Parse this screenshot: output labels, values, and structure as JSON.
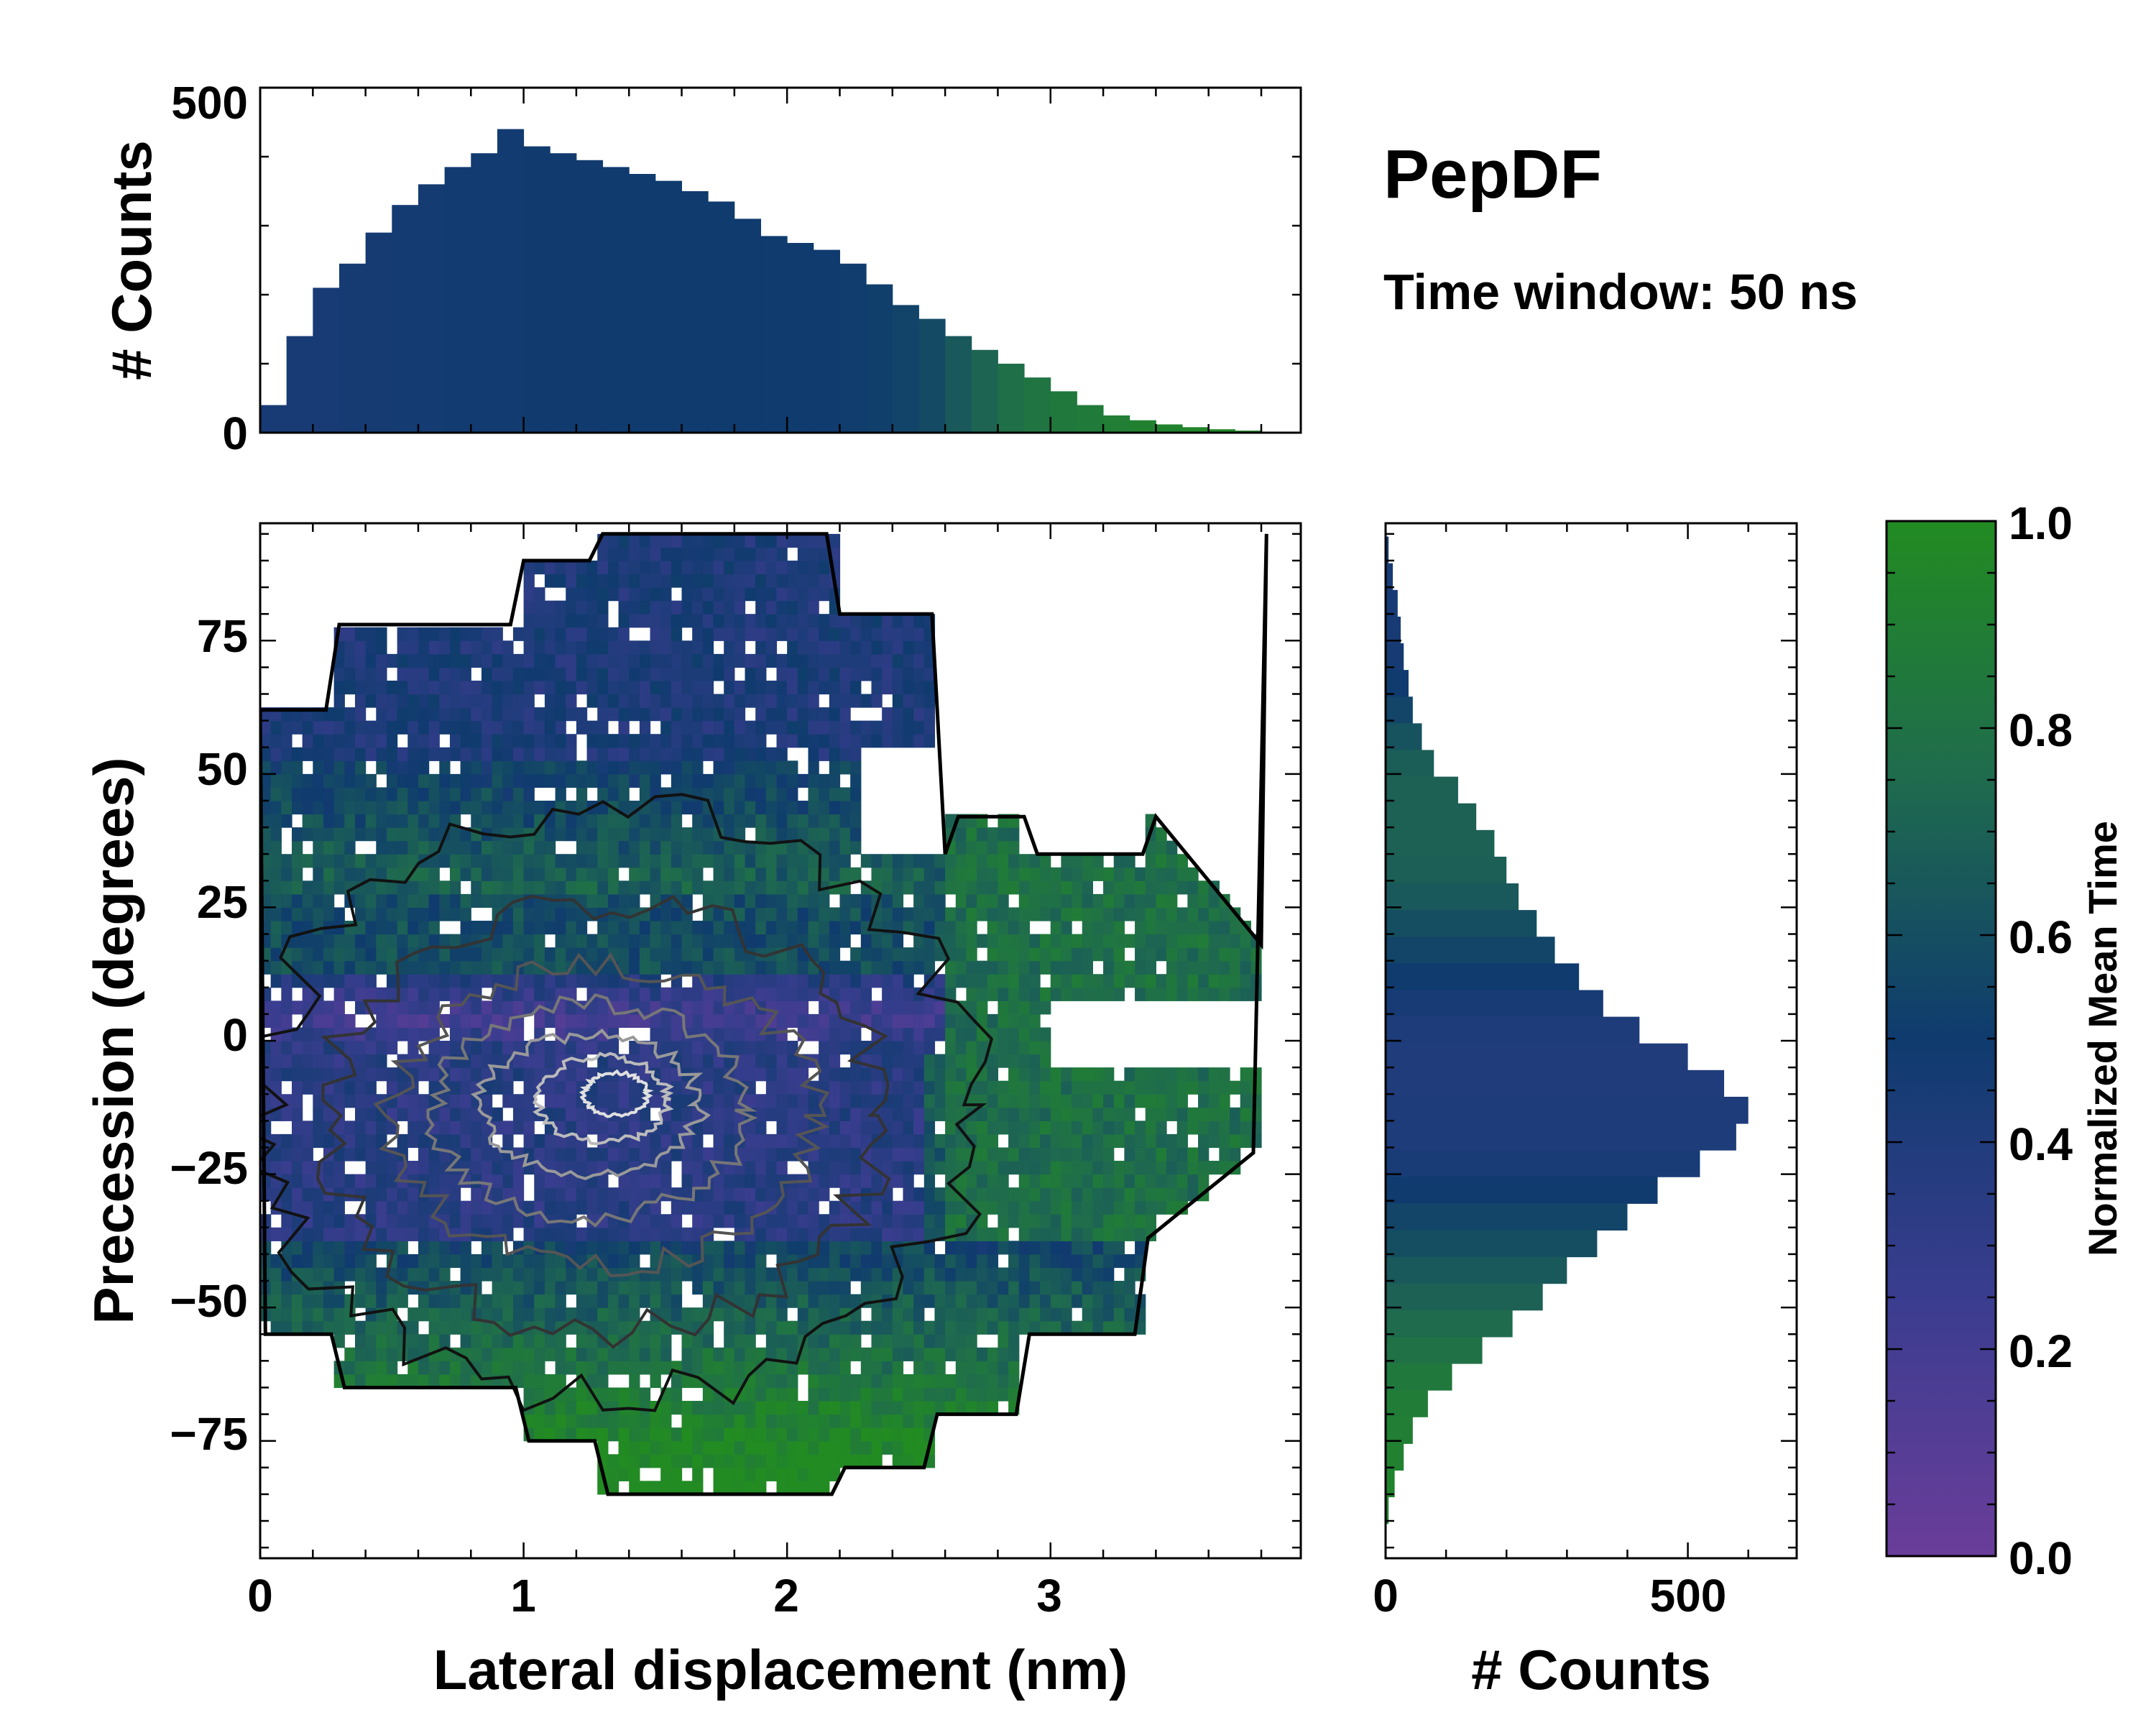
{
  "title": "PepDF",
  "subtitle": "Time window: 50 ns",
  "colors": {
    "low": "#6a3d9a",
    "mid": "#0f3b6e",
    "high": "#228b22"
  },
  "chart_data": [
    {
      "type": "bar",
      "name": "top-histogram",
      "ylabel": "# Counts",
      "xlim": [
        0,
        3.95
      ],
      "ylim": [
        0,
        500
      ],
      "yticks": [
        "0",
        "500"
      ],
      "bin_centers": [
        0.05,
        0.15,
        0.25,
        0.35,
        0.45,
        0.55,
        0.65,
        0.75,
        0.85,
        0.95,
        1.05,
        1.15,
        1.25,
        1.35,
        1.45,
        1.55,
        1.65,
        1.75,
        1.85,
        1.95,
        2.05,
        2.15,
        2.25,
        2.35,
        2.45,
        2.55,
        2.65,
        2.75,
        2.85,
        2.95,
        3.05,
        3.15,
        3.25,
        3.35,
        3.45,
        3.55,
        3.65,
        3.75,
        3.85
      ],
      "values": [
        40,
        140,
        210,
        245,
        290,
        330,
        360,
        385,
        405,
        440,
        415,
        405,
        395,
        385,
        375,
        365,
        350,
        335,
        310,
        285,
        275,
        265,
        245,
        215,
        185,
        165,
        140,
        120,
        100,
        80,
        60,
        40,
        25,
        18,
        12,
        8,
        5,
        3,
        0
      ],
      "normalized_mean_time": [
        0.45,
        0.45,
        0.45,
        0.46,
        0.46,
        0.47,
        0.47,
        0.48,
        0.48,
        0.48,
        0.49,
        0.49,
        0.49,
        0.5,
        0.5,
        0.5,
        0.5,
        0.5,
        0.5,
        0.5,
        0.5,
        0.5,
        0.51,
        0.52,
        0.54,
        0.58,
        0.65,
        0.72,
        0.78,
        0.82,
        0.85,
        0.87,
        0.9,
        0.92,
        0.94,
        0.95,
        0.96,
        0.97,
        0.98
      ]
    },
    {
      "type": "heatmap",
      "name": "main-heatmap",
      "xlabel": "Lateral displacement (nm)",
      "ylabel": "Precession (degrees)",
      "xlim": [
        0,
        3.95
      ],
      "ylim": [
        -97,
        97
      ],
      "xticks": [
        "0",
        "1",
        "2",
        "3"
      ],
      "yticks": [
        "−75",
        "−50",
        "−25",
        "0",
        "25",
        "50",
        "75"
      ],
      "colorbar_label": "Normalized Mean Time",
      "color_field": "mean time varies with precession: low (purple) near -5 to 10 degrees, blue-navy around -25 and above 50, green above 25 and below -50; contours of density centered near (1.3 nm, -12 deg)"
    },
    {
      "type": "bar",
      "name": "right-histogram",
      "orientation": "horizontal",
      "xlabel": "# Counts",
      "xlim": [
        0,
        680
      ],
      "xticks": [
        "0",
        "500"
      ],
      "ylim": [
        -97,
        97
      ],
      "bin_centers": [
        92,
        87,
        82,
        77,
        72,
        67,
        62,
        57,
        52,
        47,
        42,
        37,
        32,
        27,
        22,
        17,
        12,
        7,
        2,
        -3,
        -8,
        -13,
        -18,
        -23,
        -28,
        -33,
        -38,
        -43,
        -48,
        -53,
        -58,
        -63,
        -68,
        -73,
        -78,
        -83,
        -88
      ],
      "values": [
        5,
        12,
        20,
        25,
        30,
        38,
        45,
        60,
        80,
        120,
        150,
        180,
        200,
        220,
        250,
        280,
        320,
        360,
        420,
        500,
        560,
        600,
        580,
        520,
        450,
        400,
        350,
        300,
        260,
        210,
        160,
        110,
        70,
        45,
        30,
        15,
        5
      ],
      "normalized_mean_time": [
        0.45,
        0.45,
        0.45,
        0.45,
        0.46,
        0.5,
        0.55,
        0.62,
        0.68,
        0.7,
        0.7,
        0.7,
        0.69,
        0.65,
        0.6,
        0.55,
        0.5,
        0.45,
        0.42,
        0.4,
        0.4,
        0.41,
        0.42,
        0.44,
        0.5,
        0.55,
        0.6,
        0.65,
        0.7,
        0.75,
        0.8,
        0.85,
        0.88,
        0.9,
        0.92,
        0.94,
        0.95
      ]
    },
    {
      "type": "colorbar",
      "name": "colorbar",
      "label": "Normalized Mean Time",
      "range": [
        0.0,
        1.0
      ],
      "ticks": [
        "0.0",
        "0.2",
        "0.4",
        "0.6",
        "0.8",
        "1.0"
      ]
    }
  ]
}
